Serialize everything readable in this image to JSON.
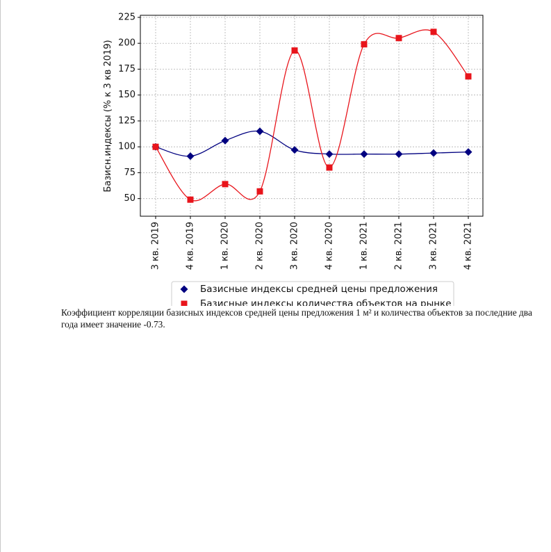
{
  "chart_data": {
    "type": "line",
    "title": "",
    "xlabel": "",
    "ylabel": "Базисн.индексы (% к 3 кв 2019)",
    "categories": [
      "3 кв. 2019",
      "4 кв. 2019",
      "1 кв. 2020",
      "2 кв. 2020",
      "3 кв. 2020",
      "4 кв. 2020",
      "1 кв. 2021",
      "2 кв. 2021",
      "3 кв. 2021",
      "4 кв. 2021"
    ],
    "yticks": [
      50,
      75,
      100,
      125,
      150,
      175,
      200,
      225
    ],
    "ylim": [
      33,
      227
    ],
    "grid": true,
    "legend_position": "bottom-center",
    "series": [
      {
        "name": "Базисные индексы средней цены предложения",
        "values": [
          100,
          91,
          106,
          115,
          97,
          93,
          93,
          93,
          94,
          95
        ],
        "color": "#000080",
        "marker": "diamond"
      },
      {
        "name": "Базисные индексы количества объектов на рынке",
        "values": [
          100,
          49,
          64,
          57,
          193,
          80,
          199,
          205,
          211,
          168
        ],
        "color": "#e8141b",
        "marker": "square"
      }
    ]
  },
  "document": {
    "paragraph": "Коэффициент корреляции базисных индексов средней цены предложения 1 м² и количества объектов за последние два года имеет значение -0.73."
  }
}
